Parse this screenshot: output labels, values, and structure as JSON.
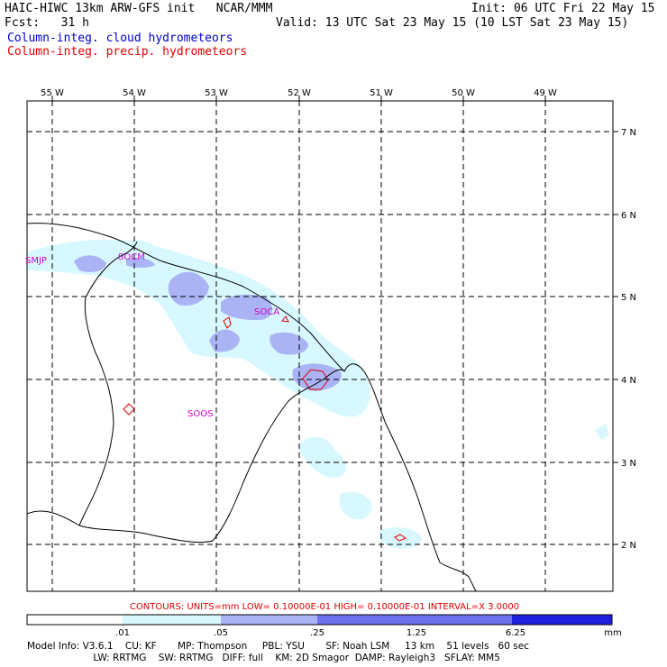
{
  "header": {
    "title": "HAIC-HIWC 13km ARW-GFS init   NCAR/MMM",
    "init": "Init: 06 UTC Fri 22 May 15",
    "fcst": "Fcst:   31 h",
    "valid": "Valid: 13 UTC Sat 23 May 15 (10 LST Sat 23 May 15)",
    "legend_cloud": "Column-integ. cloud hydrometeors",
    "legend_precip": "Column-integ. precip. hydrometeors"
  },
  "axes": {
    "lon_labels": [
      "55 W",
      "54 W",
      "53 W",
      "52 W",
      "51 W",
      "50 W",
      "49 W"
    ],
    "lat_labels": [
      "7 N",
      "6 N",
      "5 N",
      "4 N",
      "3 N",
      "2 N"
    ]
  },
  "stations": [
    "SMJP",
    "SOCM",
    "SOCA",
    "SOOS"
  ],
  "contours_line": "CONTOURS:  UNITS=mm  LOW= 0.10000E-01  HIGH= 0.10000E-01  INTERVAL=X  3.0000",
  "colorbar": {
    "labels": [
      ".01",
      ".05",
      ".25",
      "1.25",
      "6.25"
    ],
    "units": "mm",
    "colors": [
      "#ffffff",
      "#d8f8ff",
      "#aab4f4",
      "#6e72ee",
      "#2020e0"
    ]
  },
  "model_info": {
    "line1": "Model Info: V3.6.1    CU: KF       MP: Thompson     PBL: YSU       SF: Noah LSM     13 km    51 levels   60 sec",
    "line2": "                      LW: RRTMG    SW: RRTMG   DIFF: full    KM: 2D Smagor  DAMP: Rayleigh3   SFLAY: MM5"
  },
  "colors": {
    "cloud_legend": "#0000c8",
    "precip": "#e00000",
    "contour_text": "#e00000",
    "station": "#d000d0"
  }
}
